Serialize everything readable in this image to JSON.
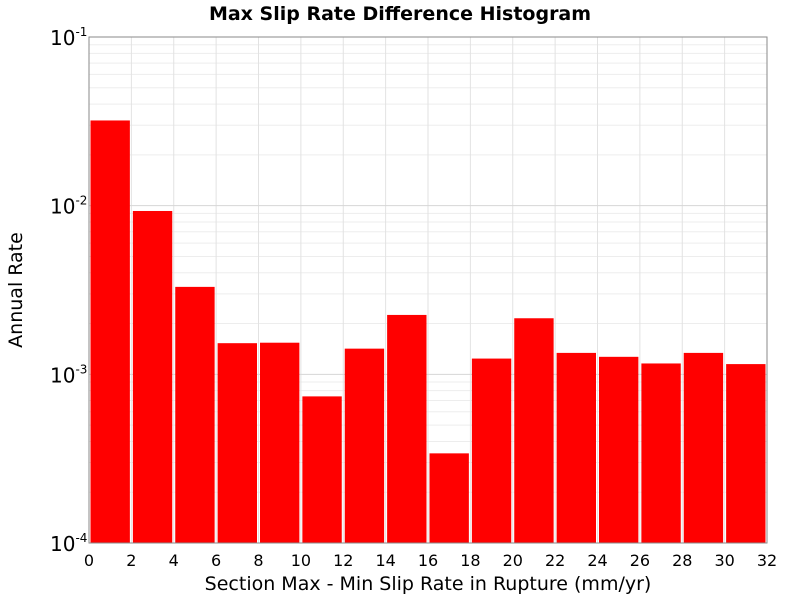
{
  "chart_data": {
    "type": "bar",
    "title": "Max Slip Rate Difference Histogram",
    "xlabel": "Section Max - Min Slip Rate in Rupture (mm/yr)",
    "ylabel": "Annual Rate",
    "xlim": [
      0,
      32
    ],
    "ylim": [
      0.0001,
      0.1
    ],
    "yscale": "log",
    "grid": true,
    "bar_color": "#ff0000",
    "bin_width": 2,
    "x": [
      1,
      3,
      5,
      7,
      9,
      11,
      13,
      15,
      17,
      19,
      21,
      23,
      25,
      27,
      29,
      31
    ],
    "values": [
      0.032,
      0.0093,
      0.0033,
      0.00153,
      0.00154,
      0.00074,
      0.00142,
      0.00225,
      0.00034,
      0.00124,
      0.00215,
      0.00134,
      0.00127,
      0.00116,
      0.00134,
      0.00115
    ],
    "xticks": [
      "0",
      "2",
      "4",
      "6",
      "8",
      "10",
      "12",
      "14",
      "16",
      "18",
      "20",
      "22",
      "24",
      "26",
      "28",
      "30",
      "32"
    ],
    "yticks": [
      {
        "base": "10",
        "exp": "-4"
      },
      {
        "base": "10",
        "exp": "-3"
      },
      {
        "base": "10",
        "exp": "-2"
      },
      {
        "base": "10",
        "exp": "-1"
      }
    ]
  }
}
